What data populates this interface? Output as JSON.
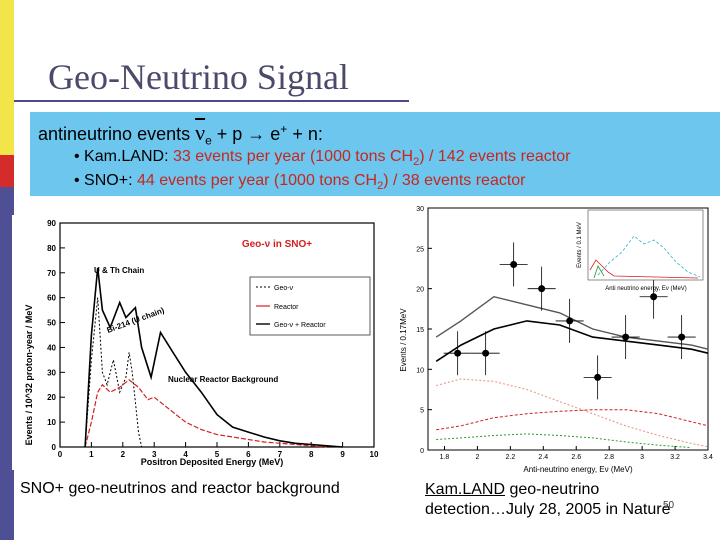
{
  "slide": {
    "title": "Geo-Neutrino Signal",
    "equation": {
      "prefix": "antineutrino events ",
      "nu": "ν",
      "sub": "e",
      "rest": " + p → e",
      "sup": "+",
      "tail": " + n:"
    },
    "bullets": [
      {
        "label": "• Kam.LAND: ",
        "red1": "33 events per year (1000 tons CH",
        "sub": "2",
        "red2": ") / 142 events reactor"
      },
      {
        "label": "• SNO+: ",
        "red1": "44 events per year (1000 tons CH",
        "sub": "2",
        "red2": ") / 38 events reactor"
      }
    ],
    "caption_left": "SNO+ geo-neutrinos and reactor background",
    "caption_right_underlined": "Kam.LAND",
    "caption_right_line1_rest": " geo-neutrino",
    "caption_right_line2": "detection…July 28, 2005 in Nature",
    "slide_number": "50",
    "colors": {
      "band": "#6cc6ee",
      "red_text": "#c8261e",
      "plot_red": "#d32020",
      "plot_cyan": "#2db3d6",
      "plot_green": "#2a9a2a"
    }
  },
  "chart_data": [
    {
      "type": "line",
      "title": "Geo-ν in SNO+",
      "xlabel": "Positron Deposited Energy (MeV)",
      "ylabel": "Events / 10^32 proton-year / MeV",
      "xlim": [
        0,
        10
      ],
      "ylim": [
        0,
        90
      ],
      "x_ticks": [
        0,
        1,
        2,
        3,
        4,
        5,
        6,
        7,
        8,
        9,
        10
      ],
      "y_ticks": [
        0,
        10,
        20,
        30,
        40,
        50,
        60,
        70,
        80,
        90
      ],
      "annotations": [
        "U & Th Chain",
        "Bi-214 (U chain)",
        "Nuclear Reactor Background"
      ],
      "legend": [
        "Geo-ν",
        "Reactor",
        "Geo-ν + Reactor"
      ],
      "legend_placement": "right",
      "series": [
        {
          "name": "Geo-ν",
          "x": [
            0.8,
            1.0,
            1.2,
            1.35,
            1.5,
            1.7,
            1.9,
            2.1,
            2.2,
            2.3,
            2.4,
            2.5,
            2.6
          ],
          "y": [
            0,
            35,
            60,
            30,
            25,
            35,
            22,
            28,
            38,
            30,
            18,
            6,
            0
          ]
        },
        {
          "name": "Reactor",
          "x": [
            0.8,
            1.0,
            1.2,
            1.35,
            1.6,
            1.9,
            2.2,
            2.5,
            2.8,
            3.0,
            3.3,
            3.6,
            4.0,
            4.5,
            5.0,
            5.5,
            6.0,
            6.5,
            7.0,
            7.5,
            8.0,
            8.5
          ],
          "y": [
            0,
            10,
            22,
            25,
            22,
            24,
            27,
            24,
            19,
            20,
            17,
            14,
            10,
            7,
            5,
            4,
            3,
            2,
            1.5,
            1,
            0.5,
            0
          ]
        },
        {
          "name": "Geo-ν + Reactor",
          "x": [
            0.8,
            1.0,
            1.2,
            1.35,
            1.6,
            1.9,
            2.1,
            2.4,
            2.6,
            2.9,
            3.2,
            3.6,
            4.0,
            4.5,
            5.0,
            5.5,
            6.0,
            6.5,
            7.0,
            7.5,
            8.0,
            8.5,
            9.0
          ],
          "y": [
            0,
            45,
            72,
            55,
            48,
            58,
            52,
            56,
            40,
            28,
            46,
            38,
            30,
            22,
            13,
            8,
            6,
            4,
            2.5,
            1.5,
            1,
            0.5,
            0
          ]
        }
      ]
    },
    {
      "type": "line",
      "xlabel": "Anti-neutrino energy, Eν (MeV)",
      "ylabel": "Events / 0.17MeV",
      "xlim": [
        1.7,
        3.4
      ],
      "ylim": [
        0,
        30
      ],
      "x_ticks": [
        1.8,
        2,
        2.2,
        2.4,
        2.6,
        2.8,
        3,
        3.2,
        3.4
      ],
      "y_ticks": [
        0,
        5,
        10,
        15,
        20,
        25,
        30
      ],
      "inset": {
        "xlabel": "Anti neutrino energy, Eν (MeV)",
        "ylabel": "Events / 0.1 MeV",
        "x_ticks": [
          2,
          4,
          6,
          8
        ]
      },
      "points": [
        {
          "x": 1.88,
          "y": 12
        },
        {
          "x": 2.05,
          "y": 12
        },
        {
          "x": 2.22,
          "y": 23
        },
        {
          "x": 2.39,
          "y": 20
        },
        {
          "x": 2.56,
          "y": 16
        },
        {
          "x": 2.73,
          "y": 9
        },
        {
          "x": 2.9,
          "y": 14
        },
        {
          "x": 3.07,
          "y": 19
        },
        {
          "x": 3.24,
          "y": 14
        }
      ],
      "series": [
        {
          "x": [
            1.75,
            1.9,
            2.1,
            2.3,
            2.5,
            2.7,
            2.9,
            3.1,
            3.3,
            3.4
          ],
          "y": [
            14,
            16,
            19,
            18,
            17,
            15,
            14,
            13.5,
            13,
            12.5
          ]
        },
        {
          "x": [
            1.75,
            1.9,
            2.1,
            2.3,
            2.5,
            2.7,
            2.9,
            3.1,
            3.3,
            3.4
          ],
          "y": [
            11,
            13,
            15,
            16,
            15.5,
            14,
            13.5,
            13,
            12.5,
            12
          ]
        },
        {
          "x": [
            1.75,
            1.9,
            2.1,
            2.3,
            2.5,
            2.7,
            2.9,
            3.1,
            3.3,
            3.4
          ],
          "y": [
            8,
            8.8,
            8.5,
            7.5,
            6,
            4.5,
            3,
            1.8,
            0.8,
            0.4
          ]
        },
        {
          "x": [
            1.75,
            1.9,
            2.1,
            2.3,
            2.5,
            2.7,
            2.9,
            3.1,
            3.3,
            3.4
          ],
          "y": [
            2.5,
            3,
            4,
            4.5,
            4.8,
            5,
            5,
            4.5,
            3.5,
            3
          ]
        },
        {
          "x": [
            1.75,
            1.9,
            2.1,
            2.3,
            2.5,
            2.7,
            2.9,
            3.1,
            3.3
          ],
          "y": [
            1.3,
            1.5,
            1.8,
            2,
            1.8,
            1.5,
            1,
            0.6,
            0.3
          ]
        }
      ]
    }
  ]
}
